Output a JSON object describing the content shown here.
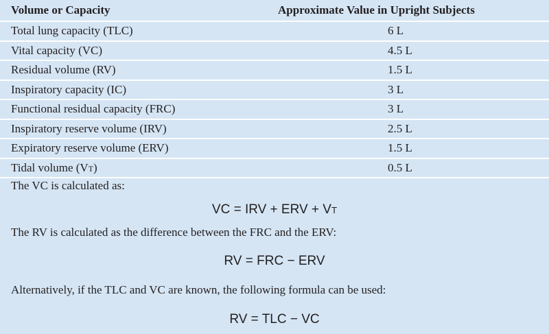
{
  "table": {
    "header": [
      "Volume or Capacity",
      "Approximate Value in Upright Subjects"
    ],
    "rows": [
      [
        "Total lung capacity (TLC)",
        "6 L"
      ],
      [
        "Vital capacity (VC)",
        "4.5 L"
      ],
      [
        "Residual volume (RV)",
        "1.5 L"
      ],
      [
        "Inspiratory capacity (IC)",
        "3 L"
      ],
      [
        "Functional residual capacity (FRC)",
        "3 L"
      ],
      [
        "Inspiratory reserve volume (IRV)",
        "2.5 L"
      ],
      [
        "Expiratory reserve volume (ERV)",
        "1.5 L"
      ],
      [
        {
          "text": "Tidal volume (V",
          "sub": "T",
          "after": ")"
        },
        "0.5 L"
      ]
    ]
  },
  "notes": [
    {
      "text": "The VC is calculated as:",
      "formula": {
        "text": "VC = IRV + ERV + V",
        "sub": "T"
      }
    },
    {
      "text": "The RV is calculated as the difference between the FRC and the ERV:",
      "formula": {
        "text": "RV = FRC − ERV"
      }
    },
    {
      "text": "Alternatively, if the TLC and VC are known, the following formula can be used:",
      "formula": {
        "text": "RV = TLC − VC"
      }
    }
  ]
}
